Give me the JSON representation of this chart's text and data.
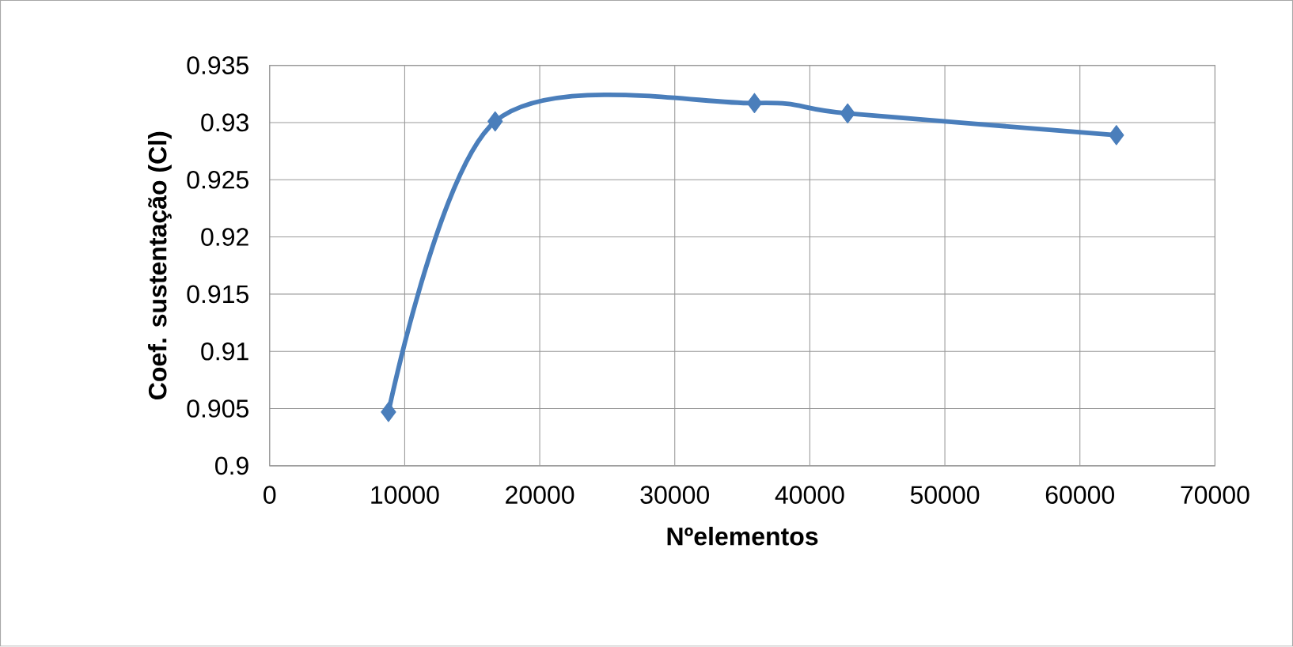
{
  "chart_data": {
    "type": "line",
    "xlabel": "Nºelementos",
    "ylabel": "Coef. sustentação (Cl)",
    "x": [
      8800,
      16700,
      35900,
      42800,
      62700
    ],
    "series": [
      {
        "color": "#4a7ebb",
        "values": [
          0.9047,
          0.9301,
          0.9317,
          0.9308,
          0.9289
        ]
      }
    ],
    "xlim": [
      0,
      70000
    ],
    "xticks": [
      0,
      10000,
      20000,
      30000,
      40000,
      50000,
      60000,
      70000
    ],
    "ylim": [
      0.9,
      0.935
    ],
    "yticks": [
      0.9,
      0.905,
      0.91,
      0.915,
      0.92,
      0.925,
      0.93,
      0.935
    ],
    "grid": true,
    "marker": "diamond",
    "line_style": "solid"
  }
}
